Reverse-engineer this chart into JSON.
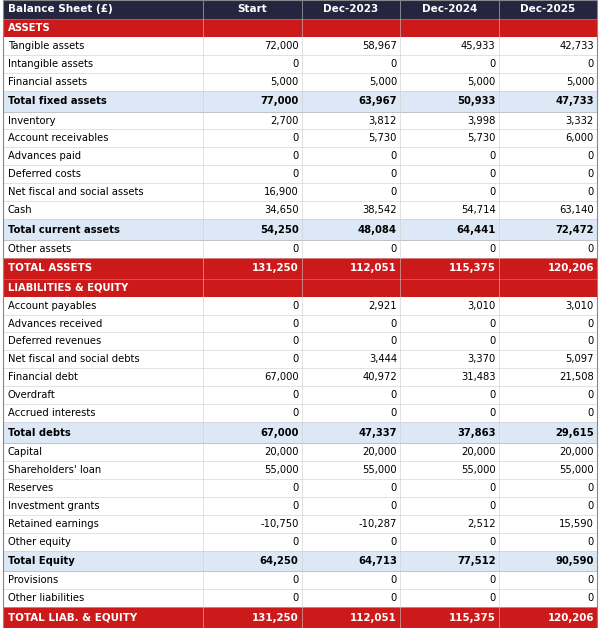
{
  "columns": [
    "Balance Sheet (£)",
    "Start",
    "Dec-2023",
    "Dec-2024",
    "Dec-2025"
  ],
  "rows": [
    {
      "label": "ASSETS",
      "type": "section",
      "values": [
        null,
        null,
        null,
        null
      ]
    },
    {
      "label": "Tangible assets",
      "type": "normal",
      "values": [
        "72,000",
        "58,967",
        "45,933",
        "42,733"
      ]
    },
    {
      "label": "Intangible assets",
      "type": "normal",
      "values": [
        "0",
        "0",
        "0",
        "0"
      ]
    },
    {
      "label": "Financial assets",
      "type": "normal",
      "values": [
        "5,000",
        "5,000",
        "5,000",
        "5,000"
      ]
    },
    {
      "label": "Total fixed assets",
      "type": "subtotal",
      "values": [
        "77,000",
        "63,967",
        "50,933",
        "47,733"
      ]
    },
    {
      "label": "Inventory",
      "type": "normal",
      "values": [
        "2,700",
        "3,812",
        "3,998",
        "3,332"
      ]
    },
    {
      "label": "Account receivables",
      "type": "normal",
      "values": [
        "0",
        "5,730",
        "5,730",
        "6,000"
      ]
    },
    {
      "label": "Advances paid",
      "type": "normal",
      "values": [
        "0",
        "0",
        "0",
        "0"
      ]
    },
    {
      "label": "Deferred costs",
      "type": "normal",
      "values": [
        "0",
        "0",
        "0",
        "0"
      ]
    },
    {
      "label": "Net fiscal and social assets",
      "type": "normal",
      "values": [
        "16,900",
        "0",
        "0",
        "0"
      ]
    },
    {
      "label": "Cash",
      "type": "normal",
      "values": [
        "34,650",
        "38,542",
        "54,714",
        "63,140"
      ]
    },
    {
      "label": "Total current assets",
      "type": "subtotal",
      "values": [
        "54,250",
        "48,084",
        "64,441",
        "72,472"
      ]
    },
    {
      "label": "Other assets",
      "type": "normal",
      "values": [
        "0",
        "0",
        "0",
        "0"
      ]
    },
    {
      "label": "TOTAL ASSETS",
      "type": "total",
      "values": [
        "131,250",
        "112,051",
        "115,375",
        "120,206"
      ]
    },
    {
      "label": "LIABILITIES & EQUITY",
      "type": "section",
      "values": [
        null,
        null,
        null,
        null
      ]
    },
    {
      "label": "Account payables",
      "type": "normal",
      "values": [
        "0",
        "2,921",
        "3,010",
        "3,010"
      ]
    },
    {
      "label": "Advances received",
      "type": "normal",
      "values": [
        "0",
        "0",
        "0",
        "0"
      ]
    },
    {
      "label": "Deferred revenues",
      "type": "normal",
      "values": [
        "0",
        "0",
        "0",
        "0"
      ]
    },
    {
      "label": "Net fiscal and social debts",
      "type": "normal",
      "values": [
        "0",
        "3,444",
        "3,370",
        "5,097"
      ]
    },
    {
      "label": "Financial debt",
      "type": "normal",
      "values": [
        "67,000",
        "40,972",
        "31,483",
        "21,508"
      ]
    },
    {
      "label": "Overdraft",
      "type": "normal",
      "values": [
        "0",
        "0",
        "0",
        "0"
      ]
    },
    {
      "label": "Accrued interests",
      "type": "normal",
      "values": [
        "0",
        "0",
        "0",
        "0"
      ]
    },
    {
      "label": "Total debts",
      "type": "subtotal",
      "values": [
        "67,000",
        "47,337",
        "37,863",
        "29,615"
      ]
    },
    {
      "label": "Capital",
      "type": "normal",
      "values": [
        "20,000",
        "20,000",
        "20,000",
        "20,000"
      ]
    },
    {
      "label": "Shareholders' loan",
      "type": "normal",
      "values": [
        "55,000",
        "55,000",
        "55,000",
        "55,000"
      ]
    },
    {
      "label": "Reserves",
      "type": "normal",
      "values": [
        "0",
        "0",
        "0",
        "0"
      ]
    },
    {
      "label": "Investment grants",
      "type": "normal",
      "values": [
        "0",
        "0",
        "0",
        "0"
      ]
    },
    {
      "label": "Retained earnings",
      "type": "normal",
      "values": [
        "-10,750",
        "-10,287",
        "2,512",
        "15,590"
      ]
    },
    {
      "label": "Other equity",
      "type": "normal",
      "values": [
        "0",
        "0",
        "0",
        "0"
      ]
    },
    {
      "label": "Total Equity",
      "type": "subtotal",
      "values": [
        "64,250",
        "64,713",
        "77,512",
        "90,590"
      ]
    },
    {
      "label": "Provisions",
      "type": "normal",
      "values": [
        "0",
        "0",
        "0",
        "0"
      ]
    },
    {
      "label": "Other liabilities",
      "type": "normal",
      "values": [
        "0",
        "0",
        "0",
        "0"
      ]
    },
    {
      "label": "TOTAL LIAB. & EQUITY",
      "type": "total",
      "values": [
        "131,250",
        "112,051",
        "115,375",
        "120,206"
      ]
    }
  ],
  "header_bg": "#252540",
  "header_fg": "#ffffff",
  "section_bg": "#cc1a1a",
  "section_fg": "#ffffff",
  "subtotal_bg": "#dce8f5",
  "subtotal_fg": "#000000",
  "total_bg": "#cc1a1a",
  "total_fg": "#ffffff",
  "normal_bg": "#ffffff",
  "normal_fg": "#000000",
  "fig_width": 6.0,
  "fig_height": 6.28,
  "dpi": 100
}
